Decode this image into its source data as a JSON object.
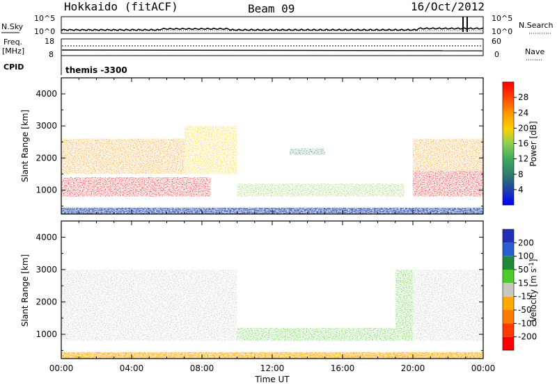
{
  "header": {
    "site": "Hokkaido (fitACF)",
    "beam": "Beam 09",
    "date": "16/Oct/2012"
  },
  "params": {
    "left_top": "N.Sky",
    "left_mid_1": "Freq.",
    "left_mid_2": "[MHz]",
    "left_bot": "CPID",
    "right_top": "N.Search",
    "right_mid": "Nave",
    "nsky_ticks": [
      "10^5",
      "10^0"
    ],
    "freq_ticks": [
      "18",
      "8"
    ],
    "nave_ticks": [
      "60",
      "0"
    ],
    "cpid_text": "themis -3300"
  },
  "colors": {
    "power": [
      "#0000ff",
      "#1f3fa8",
      "#2e7d6b",
      "#3aa860",
      "#8fd14f",
      "#ffd000",
      "#ff9500",
      "#ff4500",
      "#ff0000"
    ],
    "velocity": [
      "#1f2fb8",
      "#2a5fd0",
      "#1f8a3a",
      "#4ccd2a",
      "#c8c8c0",
      "#ffaa00",
      "#ff7a00",
      "#ff3a00",
      "#ff0000"
    ],
    "ground_scatter": "#c8c8c0"
  },
  "chart_data": [
    {
      "type": "heatmap",
      "name": "power",
      "ylabel": "Slant Range [km]",
      "xlabel": "",
      "y_ticks": [
        "1000",
        "2000",
        "3000",
        "4000"
      ],
      "ylim": [
        250,
        4500
      ],
      "colorbar_label": "Power [dB]",
      "colorbar_ticks": [
        "4",
        "8",
        "12",
        "16",
        "20",
        "24",
        "28"
      ],
      "regions": [
        {
          "t": [
            0.0,
            8.5
          ],
          "r": [
            800,
            1400
          ],
          "level": 8
        },
        {
          "t": [
            0.0,
            8.0
          ],
          "r": [
            1500,
            2600
          ],
          "level": 6
        },
        {
          "t": [
            7.0,
            10.0
          ],
          "r": [
            1500,
            3000
          ],
          "level": 5
        },
        {
          "t": [
            10.0,
            19.5
          ],
          "r": [
            800,
            1200
          ],
          "level": 4
        },
        {
          "t": [
            13.0,
            15.0
          ],
          "r": [
            2100,
            2300
          ],
          "level": 2
        },
        {
          "t": [
            20.0,
            24.0
          ],
          "r": [
            800,
            1600
          ],
          "level": 8
        },
        {
          "t": [
            20.0,
            24.0
          ],
          "r": [
            1600,
            2600
          ],
          "level": 6
        }
      ]
    },
    {
      "type": "heatmap",
      "name": "velocity",
      "ylabel": "Slant Range [km]",
      "xlabel": "Time UT",
      "x_ticks": [
        "00:00",
        "04:00",
        "08:00",
        "12:00",
        "16:00",
        "20:00",
        "00:00"
      ],
      "y_ticks": [
        "1000",
        "2000",
        "3000",
        "4000"
      ],
      "ylim": [
        250,
        4500
      ],
      "colorbar_label": "Velocity [m s-1]",
      "colorbar_ticks": [
        "200",
        "100",
        "50",
        "15",
        "-15",
        "-50",
        "-100",
        "-200"
      ],
      "regions": [
        {
          "t": [
            0.0,
            10.0
          ],
          "r": [
            800,
            3000
          ],
          "vel": 0
        },
        {
          "t": [
            10.0,
            20.0
          ],
          "r": [
            800,
            1200
          ],
          "vel": 30
        },
        {
          "t": [
            19.0,
            20.5
          ],
          "r": [
            1200,
            3000
          ],
          "vel": 30
        },
        {
          "t": [
            20.0,
            24.0
          ],
          "r": [
            800,
            3000
          ],
          "vel": 0
        }
      ]
    }
  ]
}
